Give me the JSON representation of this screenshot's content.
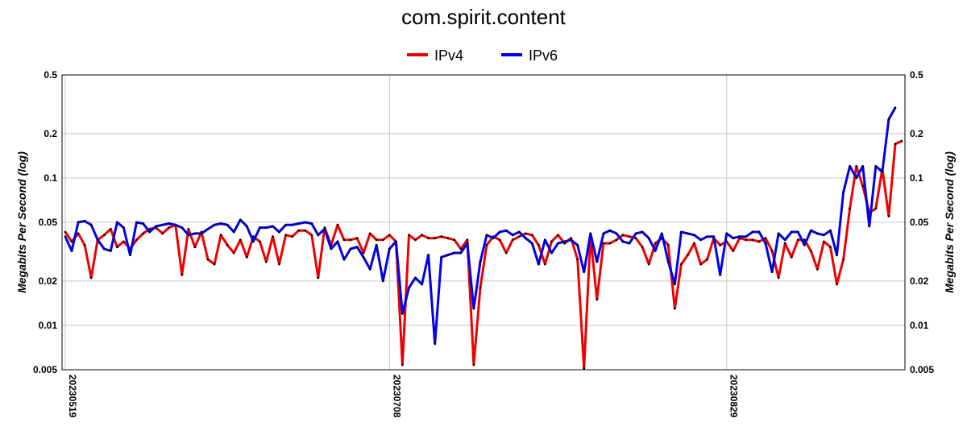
{
  "chart_data": {
    "type": "line",
    "title": "com.spirit.content",
    "ylabel": "Megabits Per Second (log)",
    "xlabel": "",
    "y_scale": "log",
    "ylim": [
      0.005,
      0.5
    ],
    "y_ticks": [
      {
        "value": 0.5,
        "label": "0.5"
      },
      {
        "value": 0.2,
        "label": "0.2"
      },
      {
        "value": 0.1,
        "label": "0.1"
      },
      {
        "value": 0.05,
        "label": "0.05"
      },
      {
        "value": 0.02,
        "label": "0.02"
      },
      {
        "value": 0.01,
        "label": "0.01"
      },
      {
        "value": 0.005,
        "label": "0.005"
      }
    ],
    "x_tick_labels": [
      {
        "index": 0,
        "label": "20230519"
      },
      {
        "index": 50,
        "label": "20230708"
      },
      {
        "index": 102,
        "label": "20230829"
      }
    ],
    "grid": true,
    "legend_position": "top-center",
    "series": [
      {
        "name": "IPv4",
        "color": "#ee0000",
        "values": [
          0.043,
          0.037,
          0.042,
          0.035,
          0.021,
          0.038,
          0.041,
          0.045,
          0.034,
          0.037,
          0.033,
          0.038,
          0.042,
          0.045,
          0.046,
          0.042,
          0.046,
          0.048,
          0.022,
          0.045,
          0.034,
          0.043,
          0.028,
          0.026,
          0.041,
          0.035,
          0.031,
          0.038,
          0.029,
          0.04,
          0.037,
          0.027,
          0.04,
          0.026,
          0.041,
          0.04,
          0.044,
          0.044,
          0.041,
          0.021,
          0.046,
          0.035,
          0.048,
          0.038,
          0.038,
          0.039,
          0.031,
          0.042,
          0.038,
          0.038,
          0.041,
          0.037,
          0.0054,
          0.041,
          0.038,
          0.041,
          0.039,
          0.039,
          0.04,
          0.039,
          0.038,
          0.033,
          0.038,
          0.0054,
          0.018,
          0.035,
          0.04,
          0.038,
          0.031,
          0.038,
          0.04,
          0.042,
          0.041,
          0.035,
          0.026,
          0.037,
          0.041,
          0.036,
          0.039,
          0.028,
          0.0051,
          0.04,
          0.015,
          0.036,
          0.036,
          0.038,
          0.041,
          0.04,
          0.039,
          0.034,
          0.026,
          0.036,
          0.039,
          0.035,
          0.013,
          0.026,
          0.03,
          0.036,
          0.026,
          0.028,
          0.039,
          0.035,
          0.037,
          0.032,
          0.039,
          0.038,
          0.038,
          0.037,
          0.039,
          0.032,
          0.021,
          0.036,
          0.029,
          0.038,
          0.038,
          0.032,
          0.024,
          0.037,
          0.034,
          0.019,
          0.028,
          0.062,
          0.12,
          0.088,
          0.058,
          0.062,
          0.115,
          0.055,
          0.17,
          0.178
        ]
      },
      {
        "name": "IPv6",
        "color": "#0000ee",
        "values": [
          0.04,
          0.032,
          0.05,
          0.051,
          0.048,
          0.038,
          0.033,
          0.032,
          0.05,
          0.046,
          0.03,
          0.05,
          0.049,
          0.043,
          0.047,
          0.048,
          0.049,
          0.048,
          0.046,
          0.041,
          0.042,
          0.042,
          0.045,
          0.048,
          0.049,
          0.048,
          0.043,
          0.052,
          0.047,
          0.037,
          0.046,
          0.046,
          0.047,
          0.043,
          0.048,
          0.048,
          0.049,
          0.05,
          0.049,
          0.041,
          0.045,
          0.033,
          0.037,
          0.028,
          0.033,
          0.034,
          0.029,
          0.024,
          0.035,
          0.02,
          0.033,
          0.037,
          0.012,
          0.018,
          0.021,
          0.019,
          0.03,
          0.0075,
          0.029,
          0.03,
          0.031,
          0.031,
          0.036,
          0.013,
          0.027,
          0.041,
          0.039,
          0.043,
          0.044,
          0.041,
          0.043,
          0.039,
          0.036,
          0.026,
          0.038,
          0.031,
          0.036,
          0.037,
          0.038,
          0.035,
          0.023,
          0.042,
          0.027,
          0.042,
          0.044,
          0.042,
          0.037,
          0.036,
          0.042,
          0.043,
          0.039,
          0.032,
          0.042,
          0.027,
          0.019,
          0.043,
          0.042,
          0.041,
          0.038,
          0.04,
          0.04,
          0.022,
          0.042,
          0.039,
          0.04,
          0.04,
          0.043,
          0.043,
          0.036,
          0.023,
          0.042,
          0.038,
          0.043,
          0.043,
          0.035,
          0.044,
          0.042,
          0.041,
          0.044,
          0.03,
          0.08,
          0.12,
          0.1,
          0.12,
          0.047,
          0.12,
          0.11,
          0.25,
          0.3
        ]
      }
    ]
  }
}
